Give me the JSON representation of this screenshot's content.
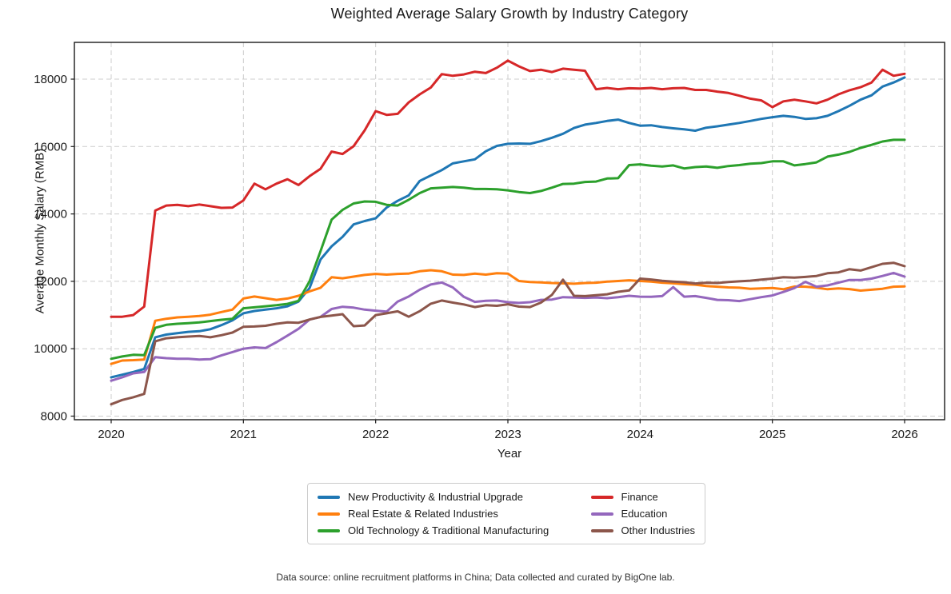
{
  "title": "Weighted Average Salary Growth by Industry Category",
  "footer": "Data source: online recruitment platforms in China; Data collected and curated by BigOne lab.",
  "colors": {
    "frame": "#1a1a1a",
    "gridline": "#cccccc",
    "background": "#ffffff"
  },
  "legend": {
    "position": "below-chart-centered",
    "columns": 2,
    "items": [
      {
        "label": "New Productivity & Industrial Upgrade",
        "color": "#1f77b4",
        "column": 1
      },
      {
        "label": "Real Estate & Related Industries",
        "color": "#ff7f0e",
        "column": 1
      },
      {
        "label": "Old Technology & Traditional Manufacturing",
        "color": "#2ca02c",
        "column": 1
      },
      {
        "label": "Finance",
        "color": "#d62728",
        "column": 2
      },
      {
        "label": "Education",
        "color": "#9467bd",
        "column": 2
      },
      {
        "label": "Other Industries",
        "color": "#8c564b",
        "column": 2
      }
    ]
  },
  "chart_data": {
    "type": "line",
    "title": "Weighted Average Salary Growth by Industry Category",
    "xlabel": "Year",
    "ylabel": "Average Monthly Salary (RMB)",
    "grid": true,
    "x_start": "2020-01",
    "x_end": "2026-01",
    "x_frequency": "monthly",
    "xtick_labels": [
      "2020",
      "2021",
      "2022",
      "2023",
      "2024",
      "2025",
      "2026"
    ],
    "ytick_values": [
      8000,
      10000,
      12000,
      14000,
      16000,
      18000
    ],
    "ytick_labels": [
      "8000",
      "10000",
      "12000",
      "14000",
      "16000",
      "18000"
    ],
    "ylim": [
      7900,
      19100
    ],
    "series": [
      {
        "name": "New Productivity & Industrial Upgrade",
        "color": "#1f77b4",
        "values": [
          9150,
          9230,
          9310,
          9400,
          10340,
          10420,
          10460,
          10500,
          10520,
          10580,
          10700,
          10840,
          11050,
          11120,
          11160,
          11200,
          11260,
          11400,
          11800,
          12650,
          13040,
          13320,
          13690,
          13790,
          13870,
          14190,
          14390,
          14550,
          14980,
          15140,
          15300,
          15500,
          15560,
          15620,
          15860,
          16020,
          16080,
          16090,
          16080,
          16160,
          16260,
          16380,
          16550,
          16650,
          16700,
          16760,
          16800,
          16700,
          16620,
          16630,
          16580,
          16540,
          16510,
          16470,
          16560,
          16600,
          16650,
          16700,
          16760,
          16820,
          16870,
          16910,
          16880,
          16820,
          16840,
          16910,
          17050,
          17210,
          17390,
          17520,
          17780,
          17900,
          18050
        ]
      },
      {
        "name": "Real Estate & Related Industries",
        "color": "#ff7f0e",
        "values": [
          9550,
          9650,
          9660,
          9680,
          10830,
          10890,
          10930,
          10950,
          10970,
          11010,
          11090,
          11160,
          11490,
          11550,
          11500,
          11450,
          11490,
          11570,
          11700,
          11810,
          12120,
          12090,
          12140,
          12190,
          12220,
          12200,
          12220,
          12230,
          12300,
          12330,
          12300,
          12200,
          12190,
          12230,
          12200,
          12240,
          12230,
          12010,
          11980,
          11970,
          11950,
          11940,
          11930,
          11950,
          11960,
          11990,
          12010,
          12030,
          12010,
          11990,
          11960,
          11940,
          11915,
          11900,
          11860,
          11840,
          11820,
          11810,
          11780,
          11790,
          11800,
          11765,
          11845,
          11840,
          11810,
          11765,
          11790,
          11770,
          11725,
          11750,
          11780,
          11840,
          11850
        ]
      },
      {
        "name": "Old Technology & Traditional Manufacturing",
        "color": "#2ca02c",
        "values": [
          9700,
          9770,
          9820,
          9810,
          10620,
          10710,
          10740,
          10760,
          10780,
          10820,
          10860,
          10890,
          11200,
          11230,
          11260,
          11290,
          11330,
          11420,
          12000,
          12900,
          13830,
          14120,
          14310,
          14370,
          14360,
          14270,
          14250,
          14420,
          14620,
          14760,
          14780,
          14800,
          14780,
          14740,
          14740,
          14730,
          14700,
          14650,
          14620,
          14680,
          14780,
          14890,
          14900,
          14950,
          14960,
          15050,
          15060,
          15450,
          15470,
          15430,
          15410,
          15440,
          15350,
          15390,
          15410,
          15370,
          15420,
          15450,
          15490,
          15510,
          15560,
          15560,
          15440,
          15480,
          15530,
          15700,
          15760,
          15840,
          15960,
          16050,
          16150,
          16200,
          16200
        ]
      },
      {
        "name": "Finance",
        "color": "#d62728",
        "values": [
          10950,
          10950,
          11000,
          11250,
          14100,
          14250,
          14270,
          14230,
          14280,
          14230,
          14180,
          14190,
          14400,
          14900,
          14730,
          14900,
          15030,
          14860,
          15120,
          15340,
          15850,
          15780,
          16010,
          16480,
          17050,
          16940,
          16970,
          17310,
          17550,
          17750,
          18150,
          18100,
          18140,
          18220,
          18180,
          18340,
          18550,
          18380,
          18240,
          18280,
          18210,
          18310,
          18280,
          18250,
          17700,
          17740,
          17700,
          17730,
          17720,
          17740,
          17700,
          17730,
          17740,
          17680,
          17680,
          17630,
          17590,
          17510,
          17420,
          17370,
          17170,
          17340,
          17390,
          17340,
          17280,
          17390,
          17550,
          17670,
          17760,
          17900,
          18280,
          18100,
          18160
        ]
      },
      {
        "name": "Education",
        "color": "#9467bd",
        "values": [
          9050,
          9150,
          9270,
          9310,
          9750,
          9720,
          9700,
          9700,
          9680,
          9690,
          9800,
          9900,
          10000,
          10040,
          10020,
          10195,
          10390,
          10590,
          10865,
          10945,
          11180,
          11245,
          11220,
          11160,
          11130,
          11100,
          11400,
          11550,
          11750,
          11905,
          11965,
          11820,
          11540,
          11390,
          11420,
          11430,
          11380,
          11360,
          11380,
          11450,
          11460,
          11530,
          11520,
          11510,
          11520,
          11500,
          11530,
          11570,
          11545,
          11540,
          11560,
          11830,
          11545,
          11560,
          11510,
          11450,
          11440,
          11415,
          11470,
          11530,
          11580,
          11685,
          11800,
          11985,
          11840,
          11880,
          11960,
          12040,
          12040,
          12080,
          12160,
          12250,
          12140
        ]
      },
      {
        "name": "Other Industries",
        "color": "#8c564b",
        "values": [
          8350,
          8480,
          8560,
          8660,
          10220,
          10310,
          10340,
          10360,
          10380,
          10340,
          10400,
          10480,
          10650,
          10660,
          10680,
          10740,
          10780,
          10770,
          10865,
          10945,
          10985,
          11025,
          10670,
          10690,
          11000,
          11050,
          11110,
          10950,
          11115,
          11335,
          11430,
          11370,
          11315,
          11235,
          11290,
          11275,
          11320,
          11250,
          11235,
          11370,
          11600,
          12050,
          11570,
          11560,
          11590,
          11615,
          11690,
          11730,
          12080,
          12055,
          12015,
          11990,
          11975,
          11935,
          11960,
          11950,
          11980,
          12000,
          12020,
          12050,
          12080,
          12120,
          12110,
          12130,
          12160,
          12240,
          12265,
          12360,
          12320,
          12420,
          12520,
          12550,
          12450
        ]
      }
    ]
  }
}
